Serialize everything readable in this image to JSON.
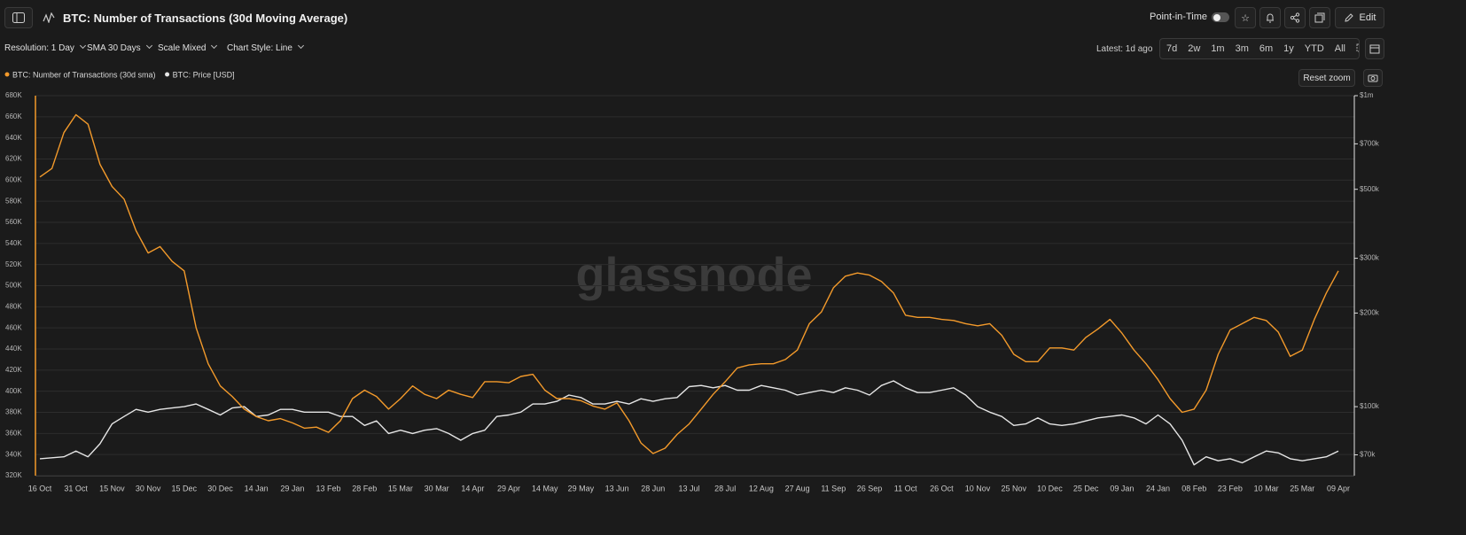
{
  "header": {
    "title": "BTC: Number of Transactions (30d Moving Average)",
    "point_in_time": "Point-in-Time",
    "edit": "Edit"
  },
  "toolbar": {
    "resolution": "Resolution: 1 Day",
    "sma": "SMA 30 Days",
    "scale": "Scale Mixed",
    "style": "Chart Style: Line",
    "latest": "Latest: 1d ago",
    "ranges": [
      "7d",
      "2w",
      "1m",
      "3m",
      "6m",
      "1y",
      "YTD",
      "All"
    ],
    "reset_zoom": "Reset zoom"
  },
  "watermark": "glassnode",
  "chart_data": {
    "type": "line",
    "categories": [
      "16 Oct",
      null,
      null,
      "31 Oct",
      null,
      null,
      "15 Nov",
      null,
      null,
      "30 Nov",
      null,
      null,
      "15 Dec",
      null,
      null,
      "30 Dec",
      null,
      null,
      "14 Jan",
      null,
      null,
      "29 Jan",
      null,
      null,
      "13 Feb",
      null,
      null,
      "28 Feb",
      null,
      null,
      "15 Mar",
      null,
      null,
      "30 Mar",
      null,
      null,
      "14 Apr",
      null,
      null,
      "29 Apr",
      null,
      null,
      "14 May",
      null,
      null,
      "29 May",
      null,
      null,
      "13 Jun",
      null,
      null,
      "28 Jun",
      null,
      null,
      "13 Jul",
      null,
      null,
      "28 Jul",
      null,
      null,
      "12 Aug",
      null,
      null,
      "27 Aug",
      null,
      null,
      "11 Sep",
      null,
      null,
      "26 Sep",
      null,
      null,
      "11 Oct",
      null,
      null,
      "26 Oct",
      null,
      null,
      "10 Nov",
      null,
      null,
      "25 Nov",
      null,
      null,
      "10 Dec",
      null,
      null,
      "25 Dec",
      null,
      null,
      "09 Jan",
      null,
      null,
      "24 Jan",
      null,
      null,
      "08 Feb",
      null,
      null,
      "23 Feb",
      null,
      null,
      "10 Mar",
      null,
      null,
      "25 Mar",
      null,
      null,
      "09 Apr"
    ],
    "series": [
      {
        "name": "BTC: Number of Transactions (30d sma)",
        "color": "#f39a2b",
        "values": [
          603000,
          611000,
          645000,
          662000,
          653000,
          615000,
          594000,
          582000,
          552000,
          531000,
          537000,
          523000,
          514000,
          460000,
          426000,
          405000,
          395000,
          383000,
          376000,
          372000,
          374000,
          370000,
          365000,
          366000,
          361000,
          372000,
          393000,
          401000,
          395000,
          383000,
          393000,
          405000,
          397000,
          393000,
          401000,
          397000,
          394000,
          409000,
          409000,
          408000,
          414000,
          416000,
          401000,
          393000,
          393000,
          391000,
          386000,
          383000,
          389000,
          372000,
          351000,
          341000,
          346000,
          359000,
          369000,
          383000,
          397000,
          409000,
          422000,
          425000,
          426000,
          426000,
          430000,
          439000,
          464000,
          475000,
          498000,
          509000,
          512000,
          510000,
          504000,
          493000,
          472000,
          470000,
          470000,
          468000,
          467000,
          464000,
          462000,
          464000,
          453000,
          435000,
          428000,
          428000,
          441000,
          441000,
          439000,
          451000,
          459000,
          468000,
          455000,
          439000,
          426000,
          411000,
          393000,
          380000,
          383000,
          401000,
          435000,
          458000,
          464000,
          470000,
          467000,
          456000,
          433000,
          439000,
          468000,
          493000,
          514000
        ]
      },
      {
        "name": "BTC: Price [USD]",
        "color": "#e6e6e6",
        "axis": "y2",
        "values": [
          68000,
          68500,
          69000,
          72000,
          69000,
          76000,
          88000,
          93000,
          98000,
          96000,
          98000,
          99000,
          100000,
          102000,
          98000,
          94000,
          99000,
          100000,
          93000,
          94000,
          98000,
          98000,
          96000,
          96000,
          96000,
          93000,
          93000,
          87000,
          90000,
          82000,
          84000,
          82000,
          84000,
          85000,
          82000,
          78000,
          82000,
          84000,
          93000,
          94000,
          96000,
          102000,
          102000,
          104000,
          109000,
          107000,
          102000,
          102000,
          104000,
          102000,
          106000,
          104000,
          106000,
          107000,
          116000,
          117000,
          115000,
          117000,
          113000,
          113000,
          117000,
          115000,
          113000,
          109000,
          111000,
          113000,
          111000,
          115000,
          113000,
          109000,
          117000,
          121000,
          115000,
          111000,
          111000,
          113000,
          115000,
          109000,
          100000,
          96000,
          93000,
          87000,
          88000,
          92000,
          88000,
          87000,
          88000,
          90000,
          92000,
          93000,
          94000,
          92000,
          88000,
          94000,
          88000,
          78000,
          65000,
          69000,
          67000,
          68000,
          66000,
          69000,
          72000,
          71000,
          68000,
          67000,
          68000,
          69000,
          72000
        ]
      }
    ],
    "ylim": [
      320000,
      680000
    ],
    "yticks": [
      {
        "value": 320000,
        "label": "320K"
      },
      {
        "value": 340000,
        "label": "340K"
      },
      {
        "value": 360000,
        "label": "360K"
      },
      {
        "value": 380000,
        "label": "380K"
      },
      {
        "value": 400000,
        "label": "400K"
      },
      {
        "value": 420000,
        "label": "420K"
      },
      {
        "value": 440000,
        "label": "440K"
      },
      {
        "value": 460000,
        "label": "460K"
      },
      {
        "value": 480000,
        "label": "480K"
      },
      {
        "value": 500000,
        "label": "500K"
      },
      {
        "value": 520000,
        "label": "520K"
      },
      {
        "value": 540000,
        "label": "540K"
      },
      {
        "value": 560000,
        "label": "560K"
      },
      {
        "value": 580000,
        "label": "580K"
      },
      {
        "value": 600000,
        "label": "600K"
      },
      {
        "value": 620000,
        "label": "620K"
      },
      {
        "value": 640000,
        "label": "640K"
      },
      {
        "value": 660000,
        "label": "660K"
      },
      {
        "value": 680000,
        "label": "680K"
      }
    ],
    "y2lim": [
      60000,
      1000000
    ],
    "y2scale": "log",
    "y2ticks": [
      {
        "value": 70000,
        "label": "$70k"
      },
      {
        "value": 100000,
        "label": "$100k"
      },
      {
        "value": 200000,
        "label": "$200k"
      },
      {
        "value": 300000,
        "label": "$300k"
      },
      {
        "value": 500000,
        "label": "$500k"
      },
      {
        "value": 700000,
        "label": "$700k"
      },
      {
        "value": 1000000,
        "label": "$1m"
      }
    ],
    "grid": true
  }
}
